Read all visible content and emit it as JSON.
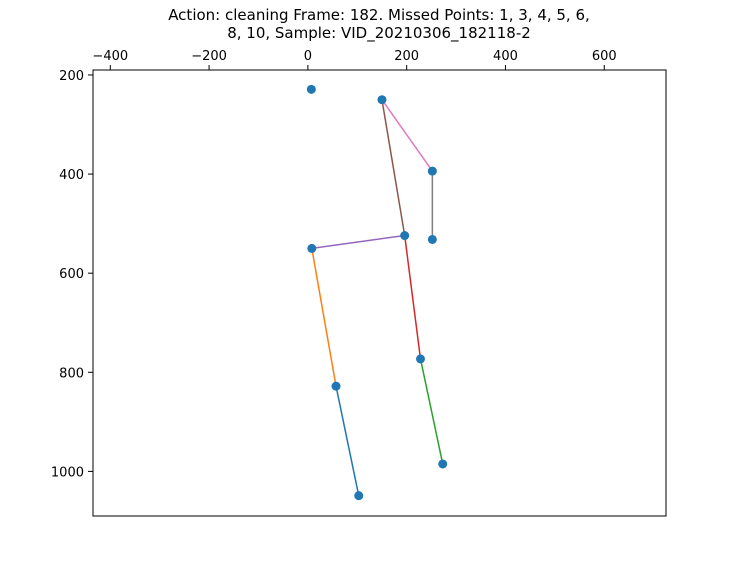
{
  "chart_data": {
    "type": "scatter",
    "title_lines": [
      "Action: cleaning   Frame: 182. Missed Points: 1, 3, 4, 5, 6,",
      "8, 10,  Sample: VID_20210306_182118-2"
    ],
    "xlabel": "",
    "ylabel": "",
    "x_axis_position": "top",
    "y_inverted": true,
    "xlim": [
      -435,
      725
    ],
    "ylim": [
      1090,
      190
    ],
    "xticks": [
      -400,
      -200,
      0,
      200,
      400,
      600
    ],
    "xtick_labels": [
      "−400",
      "−200",
      "0",
      "200",
      "400",
      "600"
    ],
    "yticks": [
      200,
      400,
      600,
      800,
      1000
    ],
    "ytick_labels": [
      "200",
      "400",
      "600",
      "800",
      "1000"
    ],
    "grid": false,
    "point_color": "#1f77b4",
    "points": [
      {
        "x": 7,
        "y": 229
      },
      {
        "x": 150,
        "y": 250
      },
      {
        "x": 252,
        "y": 394
      },
      {
        "x": 252,
        "y": 532
      },
      {
        "x": 196,
        "y": 524
      },
      {
        "x": 8,
        "y": 550
      },
      {
        "x": 228,
        "y": 773
      },
      {
        "x": 57,
        "y": 828
      },
      {
        "x": 273,
        "y": 985
      },
      {
        "x": 103,
        "y": 1049
      }
    ],
    "segments": [
      {
        "from": [
          103,
          1049
        ],
        "to": [
          57,
          828
        ],
        "color": "#1f77b4"
      },
      {
        "from": [
          57,
          828
        ],
        "to": [
          8,
          550
        ],
        "color": "#ff7f0e"
      },
      {
        "from": [
          273,
          985
        ],
        "to": [
          228,
          773
        ],
        "color": "#2ca02c"
      },
      {
        "from": [
          228,
          773
        ],
        "to": [
          196,
          524
        ],
        "color": "#d62728"
      },
      {
        "from": [
          196,
          524
        ],
        "to": [
          8,
          550
        ],
        "color": "#9467bd"
      },
      {
        "from": [
          196,
          524
        ],
        "to": [
          150,
          250
        ],
        "color": "#8c564b"
      },
      {
        "from": [
          150,
          250
        ],
        "to": [
          252,
          394
        ],
        "color": "#e377c2"
      },
      {
        "from": [
          252,
          394
        ],
        "to": [
          252,
          532
        ],
        "color": "#7f7f7f"
      }
    ]
  }
}
